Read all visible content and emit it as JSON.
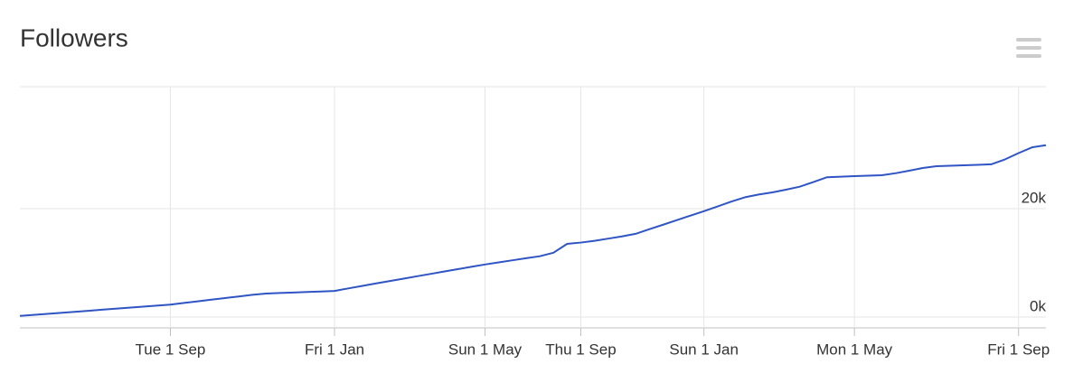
{
  "chart_data": {
    "type": "line",
    "title": "Followers",
    "categories": [
      null,
      null,
      null,
      null,
      null,
      null,
      null,
      null,
      null,
      null,
      null,
      "Tue 1 Sep",
      null,
      null,
      null,
      null,
      null,
      null,
      null,
      null,
      null,
      null,
      null,
      "Fri 1 Jan",
      null,
      null,
      null,
      null,
      null,
      null,
      null,
      null,
      null,
      null,
      "Sun 1 May",
      null,
      null,
      null,
      null,
      null,
      null,
      "Thu 1 Sep",
      null,
      null,
      null,
      null,
      null,
      null,
      null,
      null,
      "Sun 1 Jan",
      null,
      null,
      null,
      null,
      null,
      null,
      null,
      null,
      null,
      null,
      "Mon 1 May",
      null,
      null,
      null,
      null,
      null,
      null,
      null,
      null,
      null,
      null,
      null,
      "Fri 1 Sep",
      null,
      null
    ],
    "series": [
      {
        "name": "Followers",
        "color": "#2f55c4",
        "values": [
          200,
          390,
          580,
          770,
          960,
          1150,
          1350,
          1540,
          1730,
          1920,
          2110,
          2300,
          2600,
          2900,
          3200,
          3500,
          3800,
          4100,
          4330,
          4430,
          4520,
          4620,
          4710,
          4810,
          5280,
          5730,
          6180,
          6620,
          7070,
          7510,
          7950,
          8390,
          8830,
          9270,
          9700,
          10090,
          10470,
          10850,
          11220,
          11860,
          13500,
          13740,
          14070,
          14470,
          14880,
          15350,
          16190,
          17020,
          17860,
          18700,
          19530,
          20400,
          21300,
          22100,
          22600,
          23000,
          23500,
          24050,
          24900,
          25800,
          25900,
          26000,
          26080,
          26170,
          26530,
          27000,
          27500,
          27830,
          27920,
          28000,
          28090,
          28180,
          29080,
          30250,
          31320,
          31700
        ]
      }
    ],
    "ylim": [
      -2000,
      42500
    ],
    "yticks": [
      {
        "value": 0,
        "label": "0k"
      },
      {
        "value": 20000,
        "label": "20k"
      }
    ],
    "grid": true
  }
}
